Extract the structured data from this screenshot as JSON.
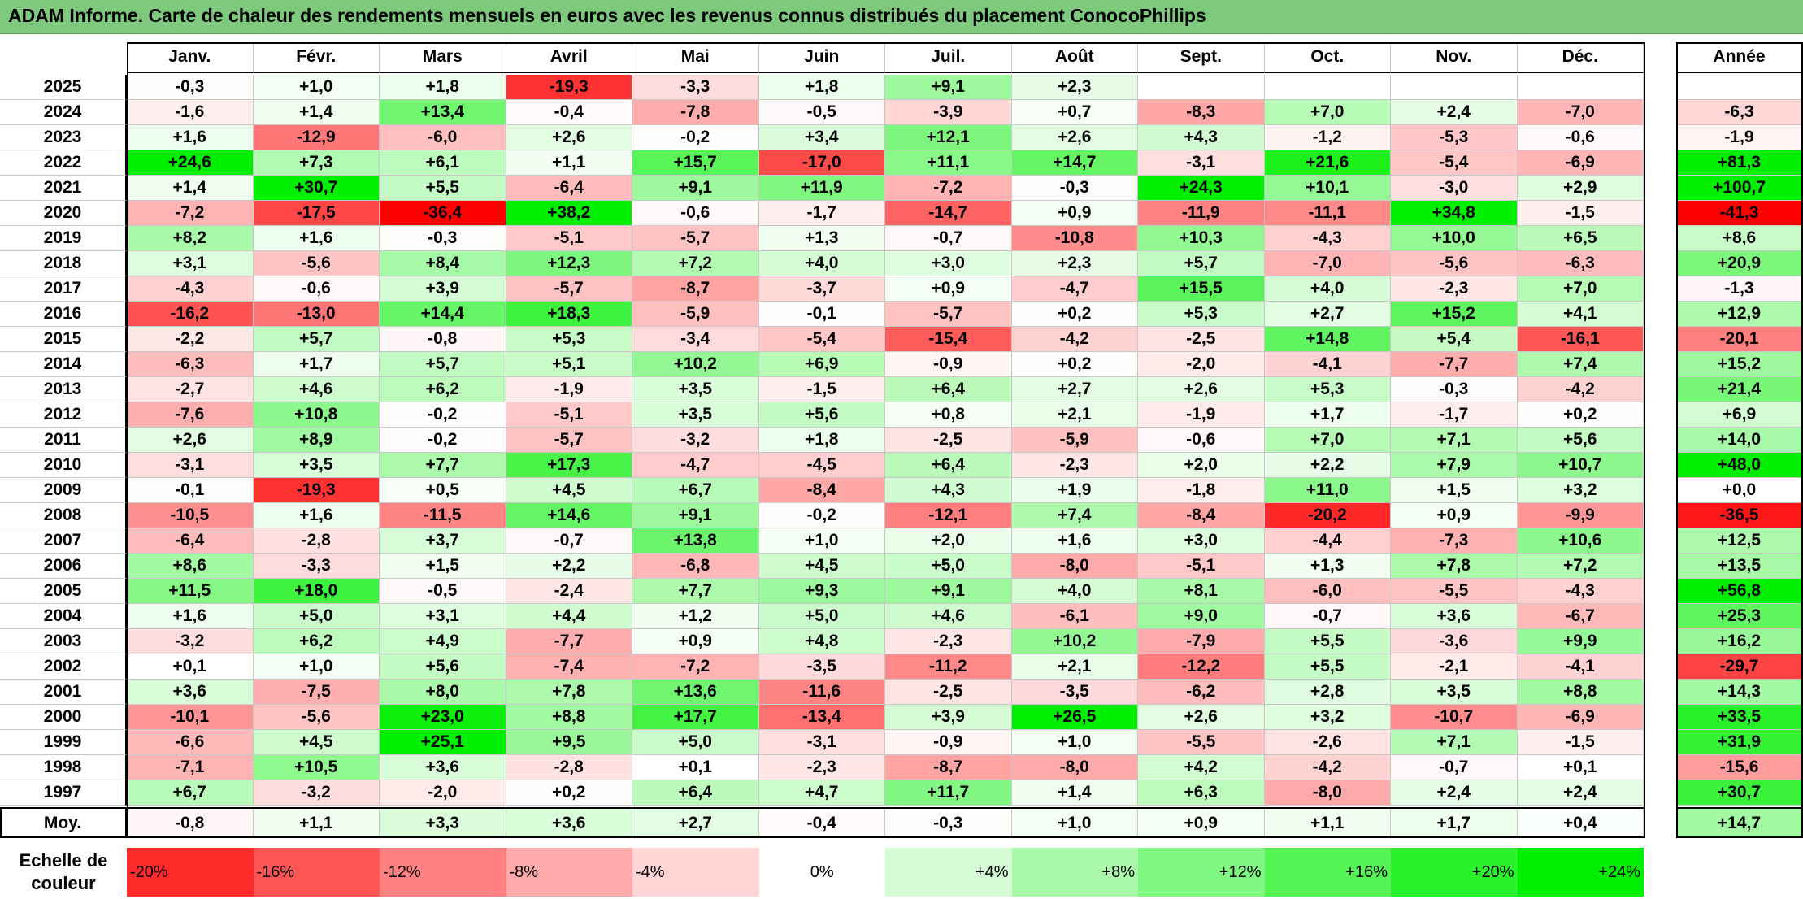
{
  "title": "ADAM Informe. Carte de chaleur des rendements mensuels en euros avec les revenus connus distribués du placement ConocoPhillips",
  "chart_data": {
    "type": "heatmap",
    "title": "ADAM Informe. Carte de chaleur des rendements mensuels en euros avec les revenus connus distribués du placement ConocoPhillips",
    "months": [
      "Janv.",
      "Févr.",
      "Mars",
      "Avril",
      "Mai",
      "Juin",
      "Juil.",
      "Août",
      "Sept.",
      "Oct.",
      "Nov.",
      "Déc."
    ],
    "year_header": "Année",
    "rows": [
      {
        "year": "2025",
        "values": [
          "-0,3",
          "+1,0",
          "+1,8",
          "-19,3",
          "-3,3",
          "+1,8",
          "+9,1",
          "+2,3",
          "",
          "",
          "",
          ""
        ],
        "annual": ""
      },
      {
        "year": "2024",
        "values": [
          "-1,6",
          "+1,4",
          "+13,4",
          "-0,4",
          "-7,8",
          "-0,5",
          "-3,9",
          "+0,7",
          "-8,3",
          "+7,0",
          "+2,4",
          "-7,0"
        ],
        "annual": "-6,3"
      },
      {
        "year": "2023",
        "values": [
          "+1,6",
          "-12,9",
          "-6,0",
          "+2,6",
          "-0,2",
          "+3,4",
          "+12,1",
          "+2,6",
          "+4,3",
          "-1,2",
          "-5,3",
          "-0,6"
        ],
        "annual": "-1,9"
      },
      {
        "year": "2022",
        "values": [
          "+24,6",
          "+7,3",
          "+6,1",
          "+1,1",
          "+15,7",
          "-17,0",
          "+11,1",
          "+14,7",
          "-3,1",
          "+21,6",
          "-5,4",
          "-6,9"
        ],
        "annual": "+81,3"
      },
      {
        "year": "2021",
        "values": [
          "+1,4",
          "+30,7",
          "+5,5",
          "-6,4",
          "+9,1",
          "+11,9",
          "-7,2",
          "-0,3",
          "+24,3",
          "+10,1",
          "-3,0",
          "+2,9"
        ],
        "annual": "+100,7"
      },
      {
        "year": "2020",
        "values": [
          "-7,2",
          "-17,5",
          "-36,4",
          "+38,2",
          "-0,6",
          "-1,7",
          "-14,7",
          "+0,9",
          "-11,9",
          "-11,1",
          "+34,8",
          "-1,5"
        ],
        "annual": "-41,3"
      },
      {
        "year": "2019",
        "values": [
          "+8,2",
          "+1,6",
          "-0,3",
          "-5,1",
          "-5,7",
          "+1,3",
          "-0,7",
          "-10,8",
          "+10,3",
          "-4,3",
          "+10,0",
          "+6,5"
        ],
        "annual": "+8,6"
      },
      {
        "year": "2018",
        "values": [
          "+3,1",
          "-5,6",
          "+8,4",
          "+12,3",
          "+7,2",
          "+4,0",
          "+3,0",
          "+2,3",
          "+5,7",
          "-7,0",
          "-5,6",
          "-6,3"
        ],
        "annual": "+20,9"
      },
      {
        "year": "2017",
        "values": [
          "-4,3",
          "-0,6",
          "+3,9",
          "-5,7",
          "-8,7",
          "-3,7",
          "+0,9",
          "-4,7",
          "+15,5",
          "+4,0",
          "-2,3",
          "+7,0"
        ],
        "annual": "-1,3"
      },
      {
        "year": "2016",
        "values": [
          "-16,2",
          "-13,0",
          "+14,4",
          "+18,3",
          "-5,9",
          "-0,1",
          "-5,7",
          "+0,2",
          "+5,3",
          "+2,7",
          "+15,2",
          "+4,1"
        ],
        "annual": "+12,9"
      },
      {
        "year": "2015",
        "values": [
          "-2,2",
          "+5,7",
          "-0,8",
          "+5,3",
          "-3,4",
          "-5,4",
          "-15,4",
          "-4,2",
          "-2,5",
          "+14,8",
          "+5,4",
          "-16,1"
        ],
        "annual": "-20,1"
      },
      {
        "year": "2014",
        "values": [
          "-6,3",
          "+1,7",
          "+5,7",
          "+5,1",
          "+10,2",
          "+6,9",
          "-0,9",
          "+0,2",
          "-2,0",
          "-4,1",
          "-7,7",
          "+7,4"
        ],
        "annual": "+15,2"
      },
      {
        "year": "2013",
        "values": [
          "-2,7",
          "+4,6",
          "+6,2",
          "-1,9",
          "+3,5",
          "-1,5",
          "+6,4",
          "+2,7",
          "+2,6",
          "+5,3",
          "-0,3",
          "-4,2"
        ],
        "annual": "+21,4"
      },
      {
        "year": "2012",
        "values": [
          "-7,6",
          "+10,8",
          "-0,2",
          "-5,1",
          "+3,5",
          "+5,6",
          "+0,8",
          "+2,1",
          "-1,9",
          "+1,7",
          "-1,7",
          "+0,2"
        ],
        "annual": "+6,9"
      },
      {
        "year": "2011",
        "values": [
          "+2,6",
          "+8,9",
          "-0,2",
          "-5,7",
          "-3,2",
          "+1,8",
          "-2,5",
          "-5,9",
          "-0,6",
          "+7,0",
          "+7,1",
          "+5,6"
        ],
        "annual": "+14,0"
      },
      {
        "year": "2010",
        "values": [
          "-3,1",
          "+3,5",
          "+7,7",
          "+17,3",
          "-4,7",
          "-4,5",
          "+6,4",
          "-2,3",
          "+2,0",
          "+2,2",
          "+7,9",
          "+10,7"
        ],
        "annual": "+48,0"
      },
      {
        "year": "2009",
        "values": [
          "-0,1",
          "-19,3",
          "+0,5",
          "+4,5",
          "+6,7",
          "-8,4",
          "+4,3",
          "+1,9",
          "-1,8",
          "+11,0",
          "+1,5",
          "+3,2"
        ],
        "annual": "+0,0"
      },
      {
        "year": "2008",
        "values": [
          "-10,5",
          "+1,6",
          "-11,5",
          "+14,6",
          "+9,1",
          "-0,2",
          "-12,1",
          "+7,4",
          "-8,4",
          "-20,2",
          "+0,9",
          "-9,9"
        ],
        "annual": "-36,5"
      },
      {
        "year": "2007",
        "values": [
          "-6,4",
          "-2,8",
          "+3,7",
          "-0,7",
          "+13,8",
          "+1,0",
          "+2,0",
          "+1,6",
          "+3,0",
          "-4,4",
          "-7,3",
          "+10,6"
        ],
        "annual": "+12,5"
      },
      {
        "year": "2006",
        "values": [
          "+8,6",
          "-3,3",
          "+1,5",
          "+2,2",
          "-6,8",
          "+4,5",
          "+5,0",
          "-8,0",
          "-5,1",
          "+1,3",
          "+7,8",
          "+7,2"
        ],
        "annual": "+13,5"
      },
      {
        "year": "2005",
        "values": [
          "+11,5",
          "+18,0",
          "-0,5",
          "-2,4",
          "+7,7",
          "+9,3",
          "+9,1",
          "+4,0",
          "+8,1",
          "-6,0",
          "-5,5",
          "-4,3"
        ],
        "annual": "+56,8"
      },
      {
        "year": "2004",
        "values": [
          "+1,6",
          "+5,0",
          "+3,1",
          "+4,4",
          "+1,2",
          "+5,0",
          "+4,6",
          "-6,1",
          "+9,0",
          "-0,7",
          "+3,6",
          "-6,7"
        ],
        "annual": "+25,3"
      },
      {
        "year": "2003",
        "values": [
          "-3,2",
          "+6,2",
          "+4,9",
          "-7,7",
          "+0,9",
          "+4,8",
          "-2,3",
          "+10,2",
          "-7,9",
          "+5,5",
          "-3,6",
          "+9,9"
        ],
        "annual": "+16,2"
      },
      {
        "year": "2002",
        "values": [
          "+0,1",
          "+1,0",
          "+5,6",
          "-7,4",
          "-7,2",
          "-3,5",
          "-11,2",
          "+2,1",
          "-12,2",
          "+5,5",
          "-2,1",
          "-4,1"
        ],
        "annual": "-29,7"
      },
      {
        "year": "2001",
        "values": [
          "+3,6",
          "-7,5",
          "+8,0",
          "+7,8",
          "+13,6",
          "-11,6",
          "-2,5",
          "-3,5",
          "-6,2",
          "+2,8",
          "+3,5",
          "+8,8"
        ],
        "annual": "+14,3"
      },
      {
        "year": "2000",
        "values": [
          "-10,1",
          "-5,6",
          "+23,0",
          "+8,8",
          "+17,7",
          "-13,4",
          "+3,9",
          "+26,5",
          "+2,6",
          "+3,2",
          "-10,7",
          "-6,9"
        ],
        "annual": "+33,5"
      },
      {
        "year": "1999",
        "values": [
          "-6,6",
          "+4,5",
          "+25,1",
          "+9,5",
          "+5,0",
          "-3,1",
          "-0,9",
          "+1,0",
          "-5,5",
          "-2,6",
          "+7,1",
          "-1,5"
        ],
        "annual": "+31,9"
      },
      {
        "year": "1998",
        "values": [
          "-7,1",
          "+10,5",
          "+3,6",
          "-2,8",
          "+0,1",
          "-2,3",
          "-8,7",
          "-8,0",
          "+4,2",
          "-4,2",
          "-0,7",
          "+0,1"
        ],
        "annual": "-15,6"
      },
      {
        "year": "1997",
        "values": [
          "+6,7",
          "-3,2",
          "-2,0",
          "+0,2",
          "+6,4",
          "+4,7",
          "+11,7",
          "+1,4",
          "+6,3",
          "-8,0",
          "+2,4",
          "+2,4"
        ],
        "annual": "+30,7"
      }
    ],
    "average": {
      "label": "Moy.",
      "values": [
        "-0,8",
        "+1,1",
        "+3,3",
        "+3,6",
        "+2,7",
        "-0,4",
        "-0,3",
        "+1,0",
        "+0,9",
        "+1,1",
        "+1,7",
        "+0,4"
      ],
      "annual": "+14,7"
    },
    "color_scale": {
      "label": "Echelle de couleur",
      "stops": [
        "-20%",
        "-16%",
        "-12%",
        "-8%",
        "-4%",
        "0%",
        "+4%",
        "+8%",
        "+12%",
        "+16%",
        "+20%",
        "+24%"
      ],
      "negative_color": "#ff0000",
      "neutral_color": "#ffffff",
      "positive_color": "#00ee00"
    }
  }
}
